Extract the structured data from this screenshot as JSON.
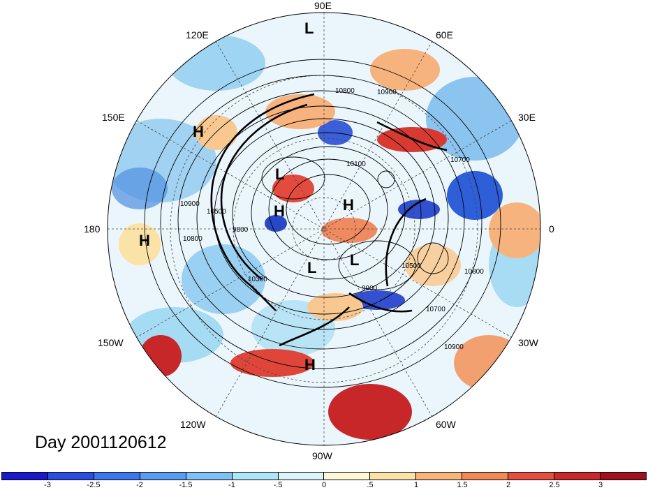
{
  "title": "Day 2001120612",
  "longitude_labels": {
    "e90": "90E",
    "e120": "120E",
    "e60": "60E",
    "e150": "150E",
    "e30": "30E",
    "w180": "180",
    "zero": "0",
    "w150": "150W",
    "w30": "30W",
    "w120": "120W",
    "w60": "60W",
    "w90": "90W"
  },
  "pressure_centers": [
    {
      "id": "low-top",
      "label": "L"
    },
    {
      "id": "high-west-pacific",
      "label": "H"
    },
    {
      "id": "low-arctic-siberia",
      "label": "L"
    },
    {
      "id": "high-arctic-west",
      "label": "H"
    },
    {
      "id": "high-arctic-east",
      "label": "H"
    },
    {
      "id": "low-canada",
      "label": "L"
    },
    {
      "id": "low-greenland",
      "label": "L"
    },
    {
      "id": "high-far-west",
      "label": "H"
    },
    {
      "id": "high-us",
      "label": "H"
    }
  ],
  "contour_labels": [
    {
      "id": "c10800a",
      "text": "10800"
    },
    {
      "id": "c10900a",
      "text": "10900"
    },
    {
      "id": "c10100",
      "text": "10100"
    },
    {
      "id": "c10700a",
      "text": "10700"
    },
    {
      "id": "c10900b",
      "text": "10900"
    },
    {
      "id": "c10500a",
      "text": "10500"
    },
    {
      "id": "c10800b",
      "text": "10800"
    },
    {
      "id": "c9800",
      "text": "9800"
    },
    {
      "id": "c10500b",
      "text": "10500"
    },
    {
      "id": "c9900",
      "text": "9900"
    },
    {
      "id": "c10700b",
      "text": "10700"
    },
    {
      "id": "c10800c",
      "text": "10800"
    },
    {
      "id": "c10900c",
      "text": "10900"
    },
    {
      "id": "c10300",
      "text": "10300"
    }
  ],
  "colorbar": {
    "colors": [
      "#1a1ac8",
      "#2a4fe0",
      "#3c78ea",
      "#5a9cf0",
      "#7fc1f5",
      "#aee6f7",
      "#dbf5fb",
      "#fff8d8",
      "#fbe2a6",
      "#f6b57a",
      "#ef8a58",
      "#e3503f",
      "#c82a2a",
      "#a0131e"
    ],
    "ticks": [
      "-3",
      "-2.5",
      "-2",
      "-1.5",
      "-1",
      "-.5",
      "0",
      ".5",
      "1",
      "1.5",
      "2",
      "2.5",
      "3"
    ]
  }
}
